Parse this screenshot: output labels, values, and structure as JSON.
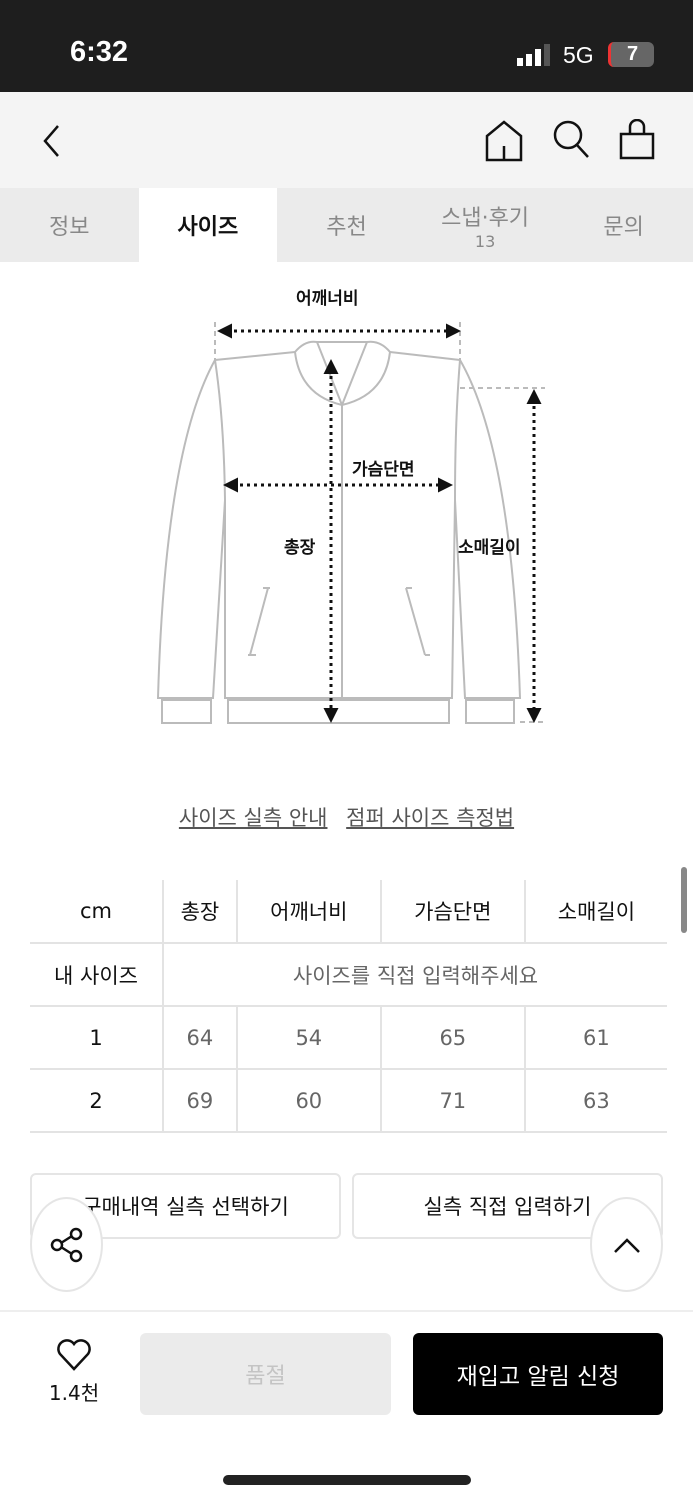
{
  "status_bar": {
    "time": "6:32",
    "network": "5G",
    "battery": "7"
  },
  "header": {
    "icons": [
      "back-icon",
      "home-icon",
      "search-icon",
      "shopping-bag-icon"
    ]
  },
  "tabs": [
    {
      "label": "정보"
    },
    {
      "label": "사이즈",
      "active": true
    },
    {
      "label": "추천"
    },
    {
      "label": "스냅·후기",
      "count": "13"
    },
    {
      "label": "문의"
    }
  ],
  "diagram": {
    "shoulder": "어깨너비",
    "chest": "가슴단면",
    "length": "총장",
    "sleeve": "소매길이"
  },
  "links": {
    "guide": "사이즈 실측 안내",
    "measure": "점퍼 사이즈 측정법"
  },
  "size_table": {
    "headers": [
      "cm",
      "총장",
      "어깨너비",
      "가슴단면",
      "소매길이"
    ],
    "my_size": {
      "label": "내 사이즈",
      "placeholder": "사이즈를 직접 입력해주세요"
    },
    "rows": [
      [
        "1",
        "64",
        "54",
        "65",
        "61"
      ],
      [
        "2",
        "69",
        "60",
        "71",
        "63"
      ]
    ]
  },
  "buttons": {
    "purchase_history": "구매내역 실측 선택하기",
    "direct_input": "실측 직접 입력하기"
  },
  "bottom_bar": {
    "likes": "1.4천",
    "sold_out": "품절",
    "restock": "재입고 알림 신청"
  },
  "colors": {
    "primary": "#000000",
    "disabled_bg": "#ebebeb",
    "tab_bg": "#ebebeb"
  }
}
